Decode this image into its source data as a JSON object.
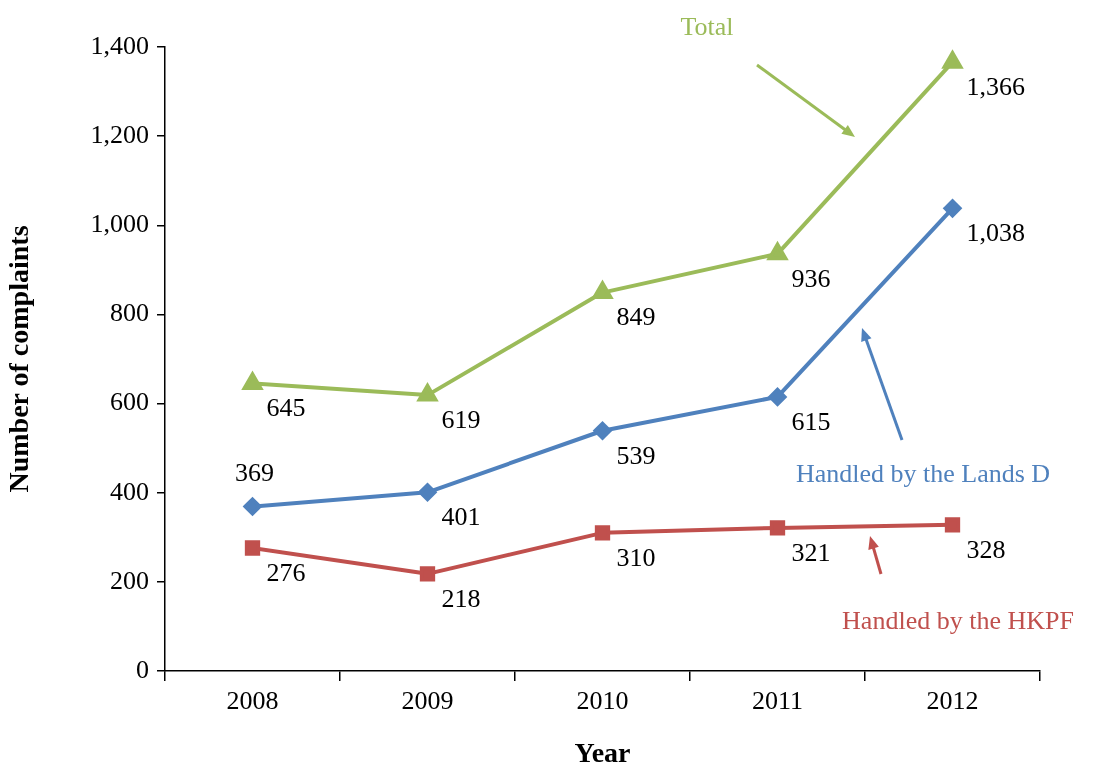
{
  "chart_data": {
    "type": "line",
    "xlabel": "Year",
    "ylabel": "Number of complaints",
    "categories": [
      "2008",
      "2009",
      "2010",
      "2011",
      "2012"
    ],
    "series": [
      {
        "name": "Total",
        "color": "#9bbb59",
        "marker": "triangle",
        "values": [
          645,
          619,
          849,
          936,
          1366
        ],
        "value_labels": [
          "645",
          "619",
          "849",
          "936",
          "1,366"
        ]
      },
      {
        "name": "Handled by the Lands D",
        "color": "#4f81bd",
        "marker": "diamond",
        "values": [
          369,
          401,
          539,
          615,
          1038
        ],
        "value_labels": [
          "369",
          "401",
          "539",
          "615",
          "1,038"
        ]
      },
      {
        "name": "Handled by the HKPF",
        "color": "#c0504d",
        "marker": "square",
        "values": [
          276,
          218,
          310,
          321,
          328
        ],
        "value_labels": [
          "276",
          "218",
          "310",
          "321",
          "328"
        ]
      }
    ],
    "ylim": [
      0,
      1400
    ],
    "yticks": [
      0,
      200,
      400,
      600,
      800,
      {
        "value": 1000,
        "label": "1,000"
      },
      {
        "value": 1200,
        "label": "1,200"
      },
      {
        "value": 1400,
        "label": "1,400"
      }
    ],
    "grid": false,
    "legend": false,
    "line_style": "solid"
  }
}
